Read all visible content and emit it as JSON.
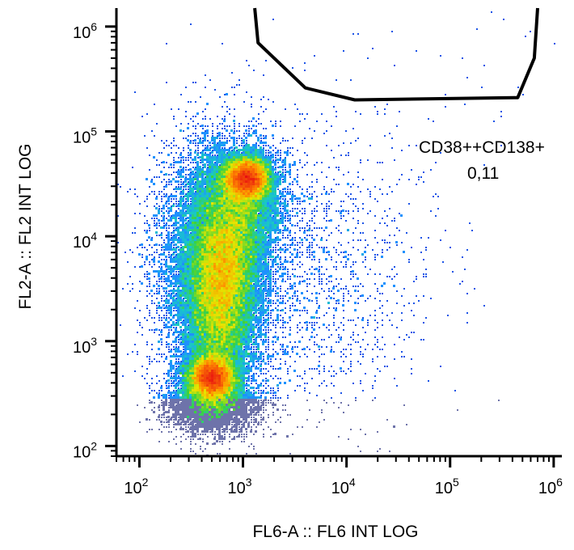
{
  "chart_data": {
    "type": "scatter",
    "xlabel": "FL6-A :: FL6 INT LOG",
    "ylabel": "FL2-A :: FL2 INT LOG",
    "x_scale": "log",
    "y_scale": "log",
    "xlim": [
      60,
      1200000
    ],
    "ylim": [
      80,
      1500000
    ],
    "x_ticks": [
      {
        "base": "10",
        "exp": "2",
        "value": 100
      },
      {
        "base": "10",
        "exp": "3",
        "value": 1000
      },
      {
        "base": "10",
        "exp": "4",
        "value": 10000
      },
      {
        "base": "10",
        "exp": "5",
        "value": 100000
      },
      {
        "base": "10",
        "exp": "6",
        "value": 1000000
      }
    ],
    "y_ticks": [
      {
        "base": "10",
        "exp": "2",
        "value": 100
      },
      {
        "base": "10",
        "exp": "3",
        "value": 1000
      },
      {
        "base": "10",
        "exp": "4",
        "value": 10000
      },
      {
        "base": "10",
        "exp": "5",
        "value": 100000
      },
      {
        "base": "10",
        "exp": "6",
        "value": 1000000
      }
    ],
    "grid": false,
    "legend": "none",
    "density_colormap": [
      "#1a1ad0",
      "#1e90ff",
      "#19c8c8",
      "#3cd23c",
      "#e6e600",
      "#ff8c00",
      "#e81010"
    ],
    "populations": [
      {
        "center": [
          1100,
          36000
        ],
        "density": "high"
      },
      {
        "center": [
          500,
          450
        ],
        "density": "high"
      },
      {
        "center": [
          600,
          4500
        ],
        "density": "medium"
      }
    ],
    "gate": {
      "name": "CD38++CD138+",
      "value": "0,11",
      "vertices": [
        [
          1300,
          1500000
        ],
        [
          1400,
          700000
        ],
        [
          4000,
          260000
        ],
        [
          12000,
          200000
        ],
        [
          450000,
          210000
        ],
        [
          650000,
          500000
        ],
        [
          700000,
          1500000
        ]
      ]
    }
  }
}
